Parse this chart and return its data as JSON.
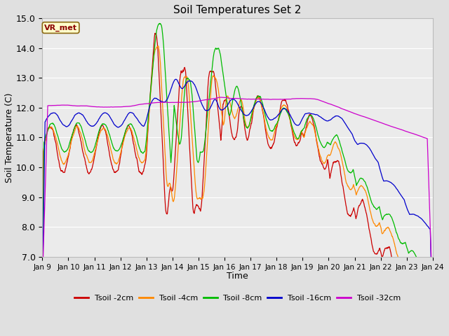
{
  "title": "Soil Temperatures Set 2",
  "xlabel": "Time",
  "ylabel": "Soil Temperature (C)",
  "ylim": [
    7.0,
    15.0
  ],
  "yticks": [
    7.0,
    8.0,
    9.0,
    10.0,
    11.0,
    12.0,
    13.0,
    14.0,
    15.0
  ],
  "xtick_labels": [
    "Jan 9",
    "Jan 10",
    "Jan 11",
    "Jan 12",
    "Jan 13",
    "Jan 14",
    "Jan 15",
    "Jan 16",
    "Jan 17",
    "Jan 18",
    "Jan 19",
    "Jan 20",
    "Jan 21",
    "Jan 22",
    "Jan 23",
    "Jan 24"
  ],
  "series_colors": {
    "Tsoil -2cm": "#cc0000",
    "Tsoil -4cm": "#ff8800",
    "Tsoil -8cm": "#00bb00",
    "Tsoil -16cm": "#0000cc",
    "Tsoil -32cm": "#cc00cc"
  },
  "annotation": "VR_met",
  "annotation_color": "#8B0000",
  "background_color": "#e0e0e0",
  "plot_bg_color": "#ebebeb",
  "grid_color": "#ffffff"
}
